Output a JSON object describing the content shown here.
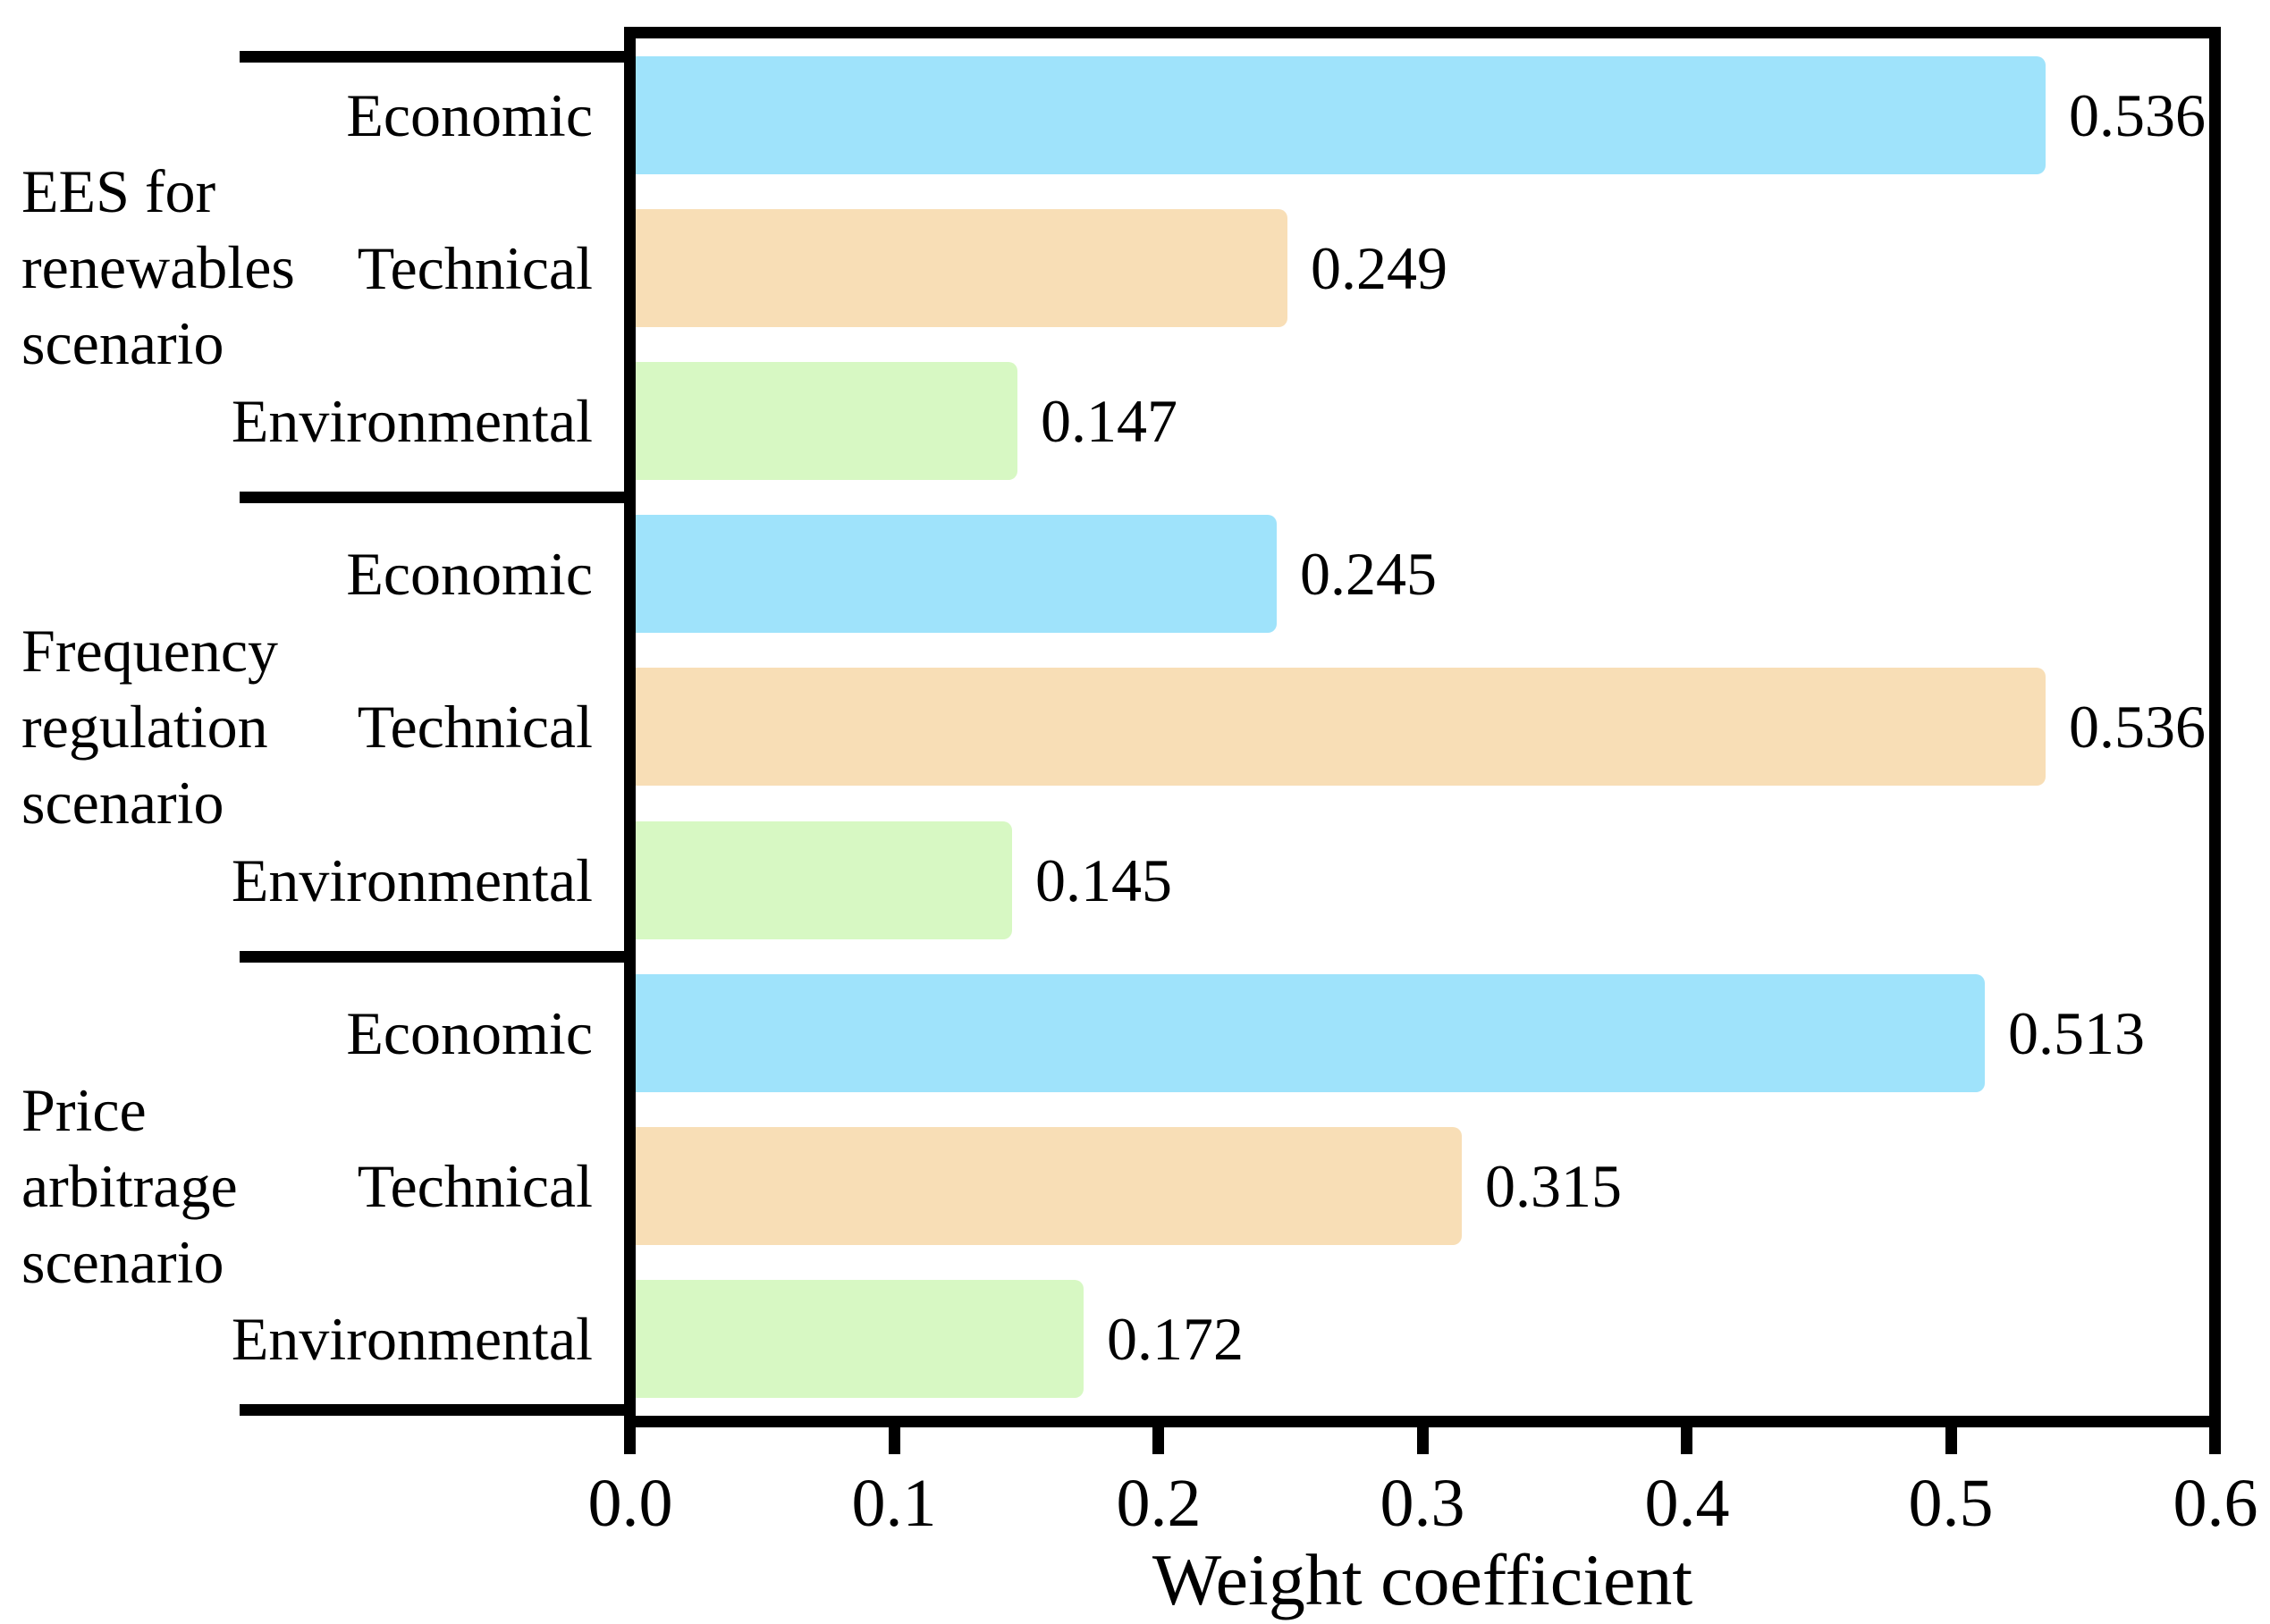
{
  "chart_data": {
    "type": "bar",
    "orientation": "horizontal",
    "xlabel": "Weight coefficient",
    "xlim": [
      0.0,
      0.6
    ],
    "x_ticks": [
      0.0,
      0.1,
      0.2,
      0.3,
      0.4,
      0.5,
      0.6
    ],
    "x_tick_labels": [
      "0.0",
      "0.1",
      "0.2",
      "0.3",
      "0.4",
      "0.5",
      "0.6"
    ],
    "grid": false,
    "legend": null,
    "categories": [
      "Economic",
      "Technical",
      "Environmental"
    ],
    "groups": [
      {
        "label_lines": [
          "EES for",
          "renewables",
          "scenario"
        ],
        "bars": [
          {
            "category": "Economic",
            "value": 0.536,
            "label": "0.536"
          },
          {
            "category": "Technical",
            "value": 0.249,
            "label": "0.249"
          },
          {
            "category": "Environmental",
            "value": 0.147,
            "label": "0.147"
          }
        ]
      },
      {
        "label_lines": [
          "Frequency",
          "regulation",
          "scenario"
        ],
        "bars": [
          {
            "category": "Economic",
            "value": 0.245,
            "label": "0.245"
          },
          {
            "category": "Technical",
            "value": 0.536,
            "label": "0.536"
          },
          {
            "category": "Environmental",
            "value": 0.145,
            "label": "0.145"
          }
        ]
      },
      {
        "label_lines": [
          "Price",
          "arbitrage",
          "scenario"
        ],
        "bars": [
          {
            "category": "Economic",
            "value": 0.513,
            "label": "0.513"
          },
          {
            "category": "Technical",
            "value": 0.315,
            "label": "0.315"
          },
          {
            "category": "Environmental",
            "value": 0.172,
            "label": "0.172"
          }
        ]
      }
    ]
  },
  "colors": {
    "background": "#FFFFFF",
    "axis": "#000000",
    "text": "#000000",
    "bar_economic": "#9FE3FB",
    "bar_technical": "#F8DEB6",
    "bar_environmental": "#D7F8C3"
  }
}
